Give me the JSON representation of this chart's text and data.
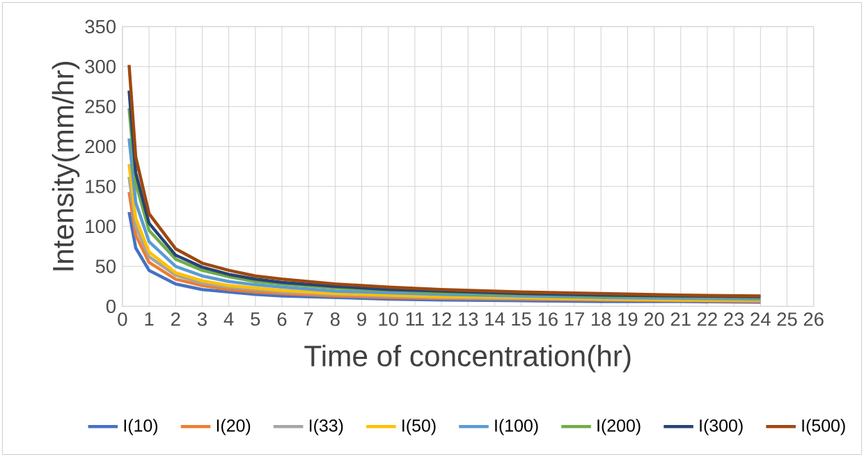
{
  "chart_data": {
    "type": "line",
    "xlabel": "Time of concentration(hr)",
    "ylabel": "Intensity(mm/hr)",
    "x": [
      0.25,
      0.5,
      1,
      2,
      3,
      4,
      5,
      6,
      8,
      10,
      12,
      15,
      18,
      21,
      24
    ],
    "series": [
      {
        "name": "I(10)",
        "color": "#4472c4",
        "values": [
          118,
          73,
          45,
          28,
          21,
          18,
          15,
          13,
          11,
          9,
          8,
          7,
          6,
          6,
          5
        ]
      },
      {
        "name": "I(20)",
        "color": "#ed7d31",
        "values": [
          143,
          89,
          55,
          34,
          26,
          21,
          18,
          16,
          13,
          11,
          10,
          9,
          8,
          7,
          6
        ]
      },
      {
        "name": "I(33)",
        "color": "#a5a5a5",
        "values": [
          162,
          100,
          62,
          39,
          29,
          24,
          21,
          18,
          15,
          13,
          11,
          10,
          9,
          8,
          7
        ]
      },
      {
        "name": "I(50)",
        "color": "#ffc000",
        "values": [
          178,
          110,
          68,
          42,
          32,
          26,
          23,
          20,
          16,
          14,
          12,
          11,
          9,
          8,
          8
        ]
      },
      {
        "name": "I(100)",
        "color": "#5b9bd5",
        "values": [
          210,
          130,
          81,
          50,
          38,
          31,
          27,
          24,
          19,
          17,
          15,
          13,
          11,
          10,
          9
        ]
      },
      {
        "name": "I(200)",
        "color": "#70ad47",
        "values": [
          248,
          154,
          95,
          59,
          45,
          37,
          31,
          28,
          23,
          20,
          17,
          15,
          13,
          12,
          11
        ]
      },
      {
        "name": "I(300)",
        "color": "#264478",
        "values": [
          270,
          167,
          104,
          64,
          49,
          40,
          34,
          30,
          25,
          21,
          19,
          16,
          14,
          13,
          12
        ]
      },
      {
        "name": "I(500)",
        "color": "#9e480e",
        "values": [
          302,
          187,
          116,
          72,
          54,
          45,
          38,
          34,
          28,
          24,
          21,
          18,
          16,
          14,
          13
        ]
      }
    ],
    "xlim": [
      0,
      26
    ],
    "xticks": [
      0,
      1,
      2,
      3,
      4,
      5,
      6,
      7,
      8,
      9,
      10,
      11,
      12,
      13,
      14,
      15,
      16,
      17,
      18,
      19,
      20,
      21,
      22,
      23,
      24,
      25,
      26
    ],
    "ylim": [
      0,
      350
    ],
    "yticks": [
      0,
      50,
      100,
      150,
      200,
      250,
      300,
      350
    ],
    "grid": true,
    "legend": "bottom",
    "marker": "none",
    "line_style": "solid"
  }
}
